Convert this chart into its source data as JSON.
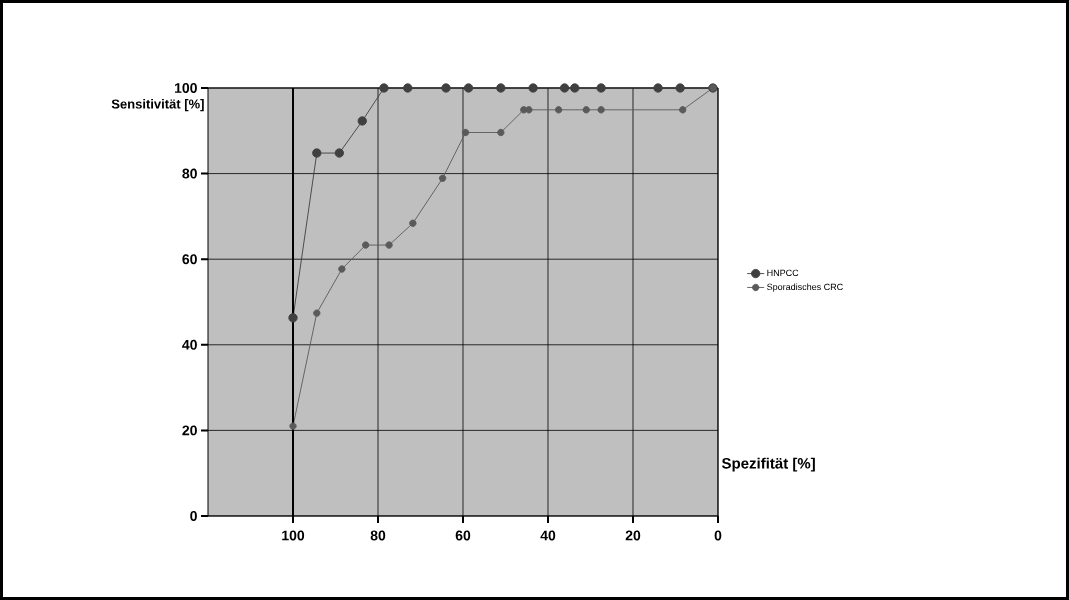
{
  "chart_data": {
    "type": "line",
    "xlabel": "Spezifität [%]",
    "ylabel": "Sensitivität [%]",
    "xlim": [
      120,
      0
    ],
    "ylim": [
      0,
      100
    ],
    "xticks": [
      100,
      80,
      60,
      40,
      20,
      0
    ],
    "yticks": [
      0,
      20,
      40,
      60,
      80,
      100
    ],
    "ref_lines": [
      {
        "axis": "x",
        "value": 100,
        "color": "#000000"
      }
    ],
    "grid": true,
    "legend": "right",
    "marker": "circle",
    "line_style": "solid",
    "series": [
      {
        "name": "HNPCC",
        "color": "#404040",
        "x": [
          100,
          94.4,
          89.1,
          83.7,
          78.6,
          73.0,
          64.0,
          58.7,
          51.1,
          43.5,
          36.1,
          33.7,
          27.5,
          14.1,
          8.9,
          1.2
        ],
        "values": [
          46.3,
          84.8,
          84.8,
          92.3,
          100,
          100,
          100,
          100,
          100,
          100,
          100,
          100,
          100,
          100,
          100,
          100
        ]
      },
      {
        "name": "Sporadisches CRC",
        "color": "#5a5a5a",
        "x": [
          100,
          94.4,
          88.5,
          82.9,
          77.4,
          71.8,
          64.8,
          59.4,
          51.1,
          45.7,
          44.5,
          37.5,
          31.0,
          27.5,
          8.3,
          1.2
        ],
        "values": [
          21.0,
          47.4,
          57.7,
          63.3,
          63.3,
          68.4,
          78.9,
          89.6,
          89.6,
          94.9,
          94.9,
          94.9,
          94.9,
          94.9,
          94.9,
          100
        ]
      }
    ]
  }
}
